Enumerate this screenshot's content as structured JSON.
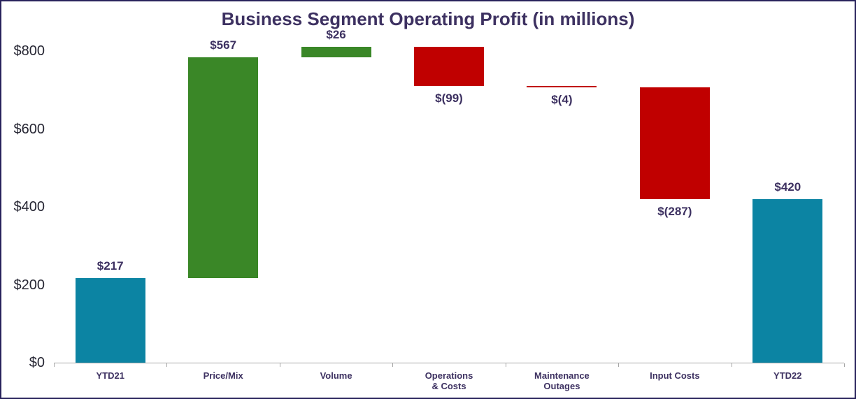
{
  "title": "Business Segment Operating Profit (in millions)",
  "colors": {
    "total": "#0c84a3",
    "increase": "#3a8727",
    "decrease": "#c00000",
    "label_text": "#3d3161",
    "axis_text": "#262633",
    "axis_line": "#a6a6a6",
    "border": "#29235c",
    "bg": "#ffffff"
  },
  "chart_data": {
    "type": "bar",
    "variant": "waterfall",
    "title": "Business Segment Operating Profit (in millions)",
    "categories": [
      "YTD21",
      "Price/Mix",
      "Volume",
      "Operations & Costs",
      "Maintenance Outages",
      "Input Costs",
      "YTD22"
    ],
    "category_lines": [
      [
        "YTD21"
      ],
      [
        "Price/Mix"
      ],
      [
        "Volume"
      ],
      [
        "Operations",
        "& Costs"
      ],
      [
        "Maintenance",
        "Outages"
      ],
      [
        "Input Costs"
      ],
      [
        "YTD22"
      ]
    ],
    "values": [
      217,
      567,
      26,
      -99,
      -4,
      -287,
      420
    ],
    "kinds": [
      "total",
      "increase",
      "increase",
      "decrease",
      "decrease",
      "decrease",
      "total"
    ],
    "labels": [
      "$217",
      "$567",
      "$26",
      "$(99)",
      "$(4)",
      "$(287)",
      "$420"
    ],
    "cumulative": [
      217,
      784,
      810,
      711,
      707,
      420,
      420
    ],
    "xlabel": "",
    "ylabel": "",
    "ylim": [
      0,
      800
    ],
    "yticks": [
      0,
      200,
      400,
      600,
      800
    ],
    "ytick_labels": [
      "$0",
      "$200",
      "$400",
      "$600",
      "$800"
    ],
    "grid": false,
    "legend": false
  }
}
